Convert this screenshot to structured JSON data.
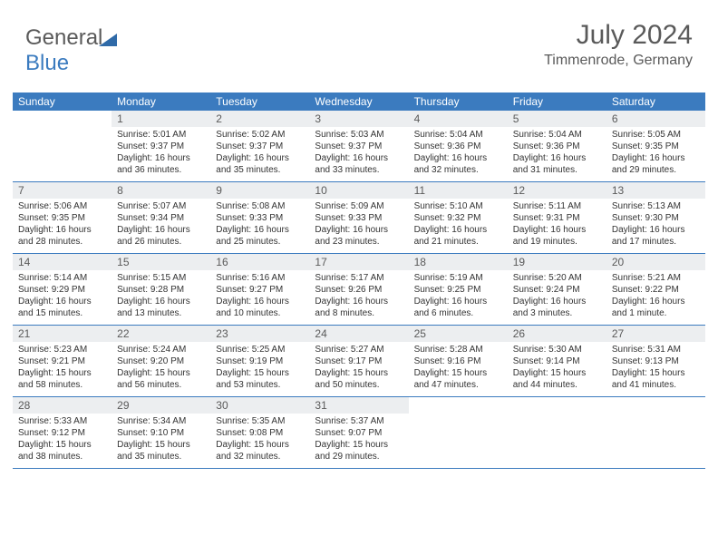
{
  "logo": {
    "part1": "General",
    "part2": "Blue"
  },
  "title": "July 2024",
  "location": "Timmenrode, Germany",
  "colors": {
    "header_bg": "#3b7bbf",
    "header_text": "#ffffff",
    "daynum_bg": "#eceef0",
    "text": "#5a5a5a",
    "content_text": "#333333"
  },
  "day_names": [
    "Sunday",
    "Monday",
    "Tuesday",
    "Wednesday",
    "Thursday",
    "Friday",
    "Saturday"
  ],
  "weeks": [
    [
      {
        "num": "",
        "sunrise": "",
        "sunset": "",
        "daylight": ""
      },
      {
        "num": "1",
        "sunrise": "Sunrise: 5:01 AM",
        "sunset": "Sunset: 9:37 PM",
        "daylight": "Daylight: 16 hours and 36 minutes."
      },
      {
        "num": "2",
        "sunrise": "Sunrise: 5:02 AM",
        "sunset": "Sunset: 9:37 PM",
        "daylight": "Daylight: 16 hours and 35 minutes."
      },
      {
        "num": "3",
        "sunrise": "Sunrise: 5:03 AM",
        "sunset": "Sunset: 9:37 PM",
        "daylight": "Daylight: 16 hours and 33 minutes."
      },
      {
        "num": "4",
        "sunrise": "Sunrise: 5:04 AM",
        "sunset": "Sunset: 9:36 PM",
        "daylight": "Daylight: 16 hours and 32 minutes."
      },
      {
        "num": "5",
        "sunrise": "Sunrise: 5:04 AM",
        "sunset": "Sunset: 9:36 PM",
        "daylight": "Daylight: 16 hours and 31 minutes."
      },
      {
        "num": "6",
        "sunrise": "Sunrise: 5:05 AM",
        "sunset": "Sunset: 9:35 PM",
        "daylight": "Daylight: 16 hours and 29 minutes."
      }
    ],
    [
      {
        "num": "7",
        "sunrise": "Sunrise: 5:06 AM",
        "sunset": "Sunset: 9:35 PM",
        "daylight": "Daylight: 16 hours and 28 minutes."
      },
      {
        "num": "8",
        "sunrise": "Sunrise: 5:07 AM",
        "sunset": "Sunset: 9:34 PM",
        "daylight": "Daylight: 16 hours and 26 minutes."
      },
      {
        "num": "9",
        "sunrise": "Sunrise: 5:08 AM",
        "sunset": "Sunset: 9:33 PM",
        "daylight": "Daylight: 16 hours and 25 minutes."
      },
      {
        "num": "10",
        "sunrise": "Sunrise: 5:09 AM",
        "sunset": "Sunset: 9:33 PM",
        "daylight": "Daylight: 16 hours and 23 minutes."
      },
      {
        "num": "11",
        "sunrise": "Sunrise: 5:10 AM",
        "sunset": "Sunset: 9:32 PM",
        "daylight": "Daylight: 16 hours and 21 minutes."
      },
      {
        "num": "12",
        "sunrise": "Sunrise: 5:11 AM",
        "sunset": "Sunset: 9:31 PM",
        "daylight": "Daylight: 16 hours and 19 minutes."
      },
      {
        "num": "13",
        "sunrise": "Sunrise: 5:13 AM",
        "sunset": "Sunset: 9:30 PM",
        "daylight": "Daylight: 16 hours and 17 minutes."
      }
    ],
    [
      {
        "num": "14",
        "sunrise": "Sunrise: 5:14 AM",
        "sunset": "Sunset: 9:29 PM",
        "daylight": "Daylight: 16 hours and 15 minutes."
      },
      {
        "num": "15",
        "sunrise": "Sunrise: 5:15 AM",
        "sunset": "Sunset: 9:28 PM",
        "daylight": "Daylight: 16 hours and 13 minutes."
      },
      {
        "num": "16",
        "sunrise": "Sunrise: 5:16 AM",
        "sunset": "Sunset: 9:27 PM",
        "daylight": "Daylight: 16 hours and 10 minutes."
      },
      {
        "num": "17",
        "sunrise": "Sunrise: 5:17 AM",
        "sunset": "Sunset: 9:26 PM",
        "daylight": "Daylight: 16 hours and 8 minutes."
      },
      {
        "num": "18",
        "sunrise": "Sunrise: 5:19 AM",
        "sunset": "Sunset: 9:25 PM",
        "daylight": "Daylight: 16 hours and 6 minutes."
      },
      {
        "num": "19",
        "sunrise": "Sunrise: 5:20 AM",
        "sunset": "Sunset: 9:24 PM",
        "daylight": "Daylight: 16 hours and 3 minutes."
      },
      {
        "num": "20",
        "sunrise": "Sunrise: 5:21 AM",
        "sunset": "Sunset: 9:22 PM",
        "daylight": "Daylight: 16 hours and 1 minute."
      }
    ],
    [
      {
        "num": "21",
        "sunrise": "Sunrise: 5:23 AM",
        "sunset": "Sunset: 9:21 PM",
        "daylight": "Daylight: 15 hours and 58 minutes."
      },
      {
        "num": "22",
        "sunrise": "Sunrise: 5:24 AM",
        "sunset": "Sunset: 9:20 PM",
        "daylight": "Daylight: 15 hours and 56 minutes."
      },
      {
        "num": "23",
        "sunrise": "Sunrise: 5:25 AM",
        "sunset": "Sunset: 9:19 PM",
        "daylight": "Daylight: 15 hours and 53 minutes."
      },
      {
        "num": "24",
        "sunrise": "Sunrise: 5:27 AM",
        "sunset": "Sunset: 9:17 PM",
        "daylight": "Daylight: 15 hours and 50 minutes."
      },
      {
        "num": "25",
        "sunrise": "Sunrise: 5:28 AM",
        "sunset": "Sunset: 9:16 PM",
        "daylight": "Daylight: 15 hours and 47 minutes."
      },
      {
        "num": "26",
        "sunrise": "Sunrise: 5:30 AM",
        "sunset": "Sunset: 9:14 PM",
        "daylight": "Daylight: 15 hours and 44 minutes."
      },
      {
        "num": "27",
        "sunrise": "Sunrise: 5:31 AM",
        "sunset": "Sunset: 9:13 PM",
        "daylight": "Daylight: 15 hours and 41 minutes."
      }
    ],
    [
      {
        "num": "28",
        "sunrise": "Sunrise: 5:33 AM",
        "sunset": "Sunset: 9:12 PM",
        "daylight": "Daylight: 15 hours and 38 minutes."
      },
      {
        "num": "29",
        "sunrise": "Sunrise: 5:34 AM",
        "sunset": "Sunset: 9:10 PM",
        "daylight": "Daylight: 15 hours and 35 minutes."
      },
      {
        "num": "30",
        "sunrise": "Sunrise: 5:35 AM",
        "sunset": "Sunset: 9:08 PM",
        "daylight": "Daylight: 15 hours and 32 minutes."
      },
      {
        "num": "31",
        "sunrise": "Sunrise: 5:37 AM",
        "sunset": "Sunset: 9:07 PM",
        "daylight": "Daylight: 15 hours and 29 minutes."
      },
      {
        "num": "",
        "sunrise": "",
        "sunset": "",
        "daylight": ""
      },
      {
        "num": "",
        "sunrise": "",
        "sunset": "",
        "daylight": ""
      },
      {
        "num": "",
        "sunrise": "",
        "sunset": "",
        "daylight": ""
      }
    ]
  ]
}
